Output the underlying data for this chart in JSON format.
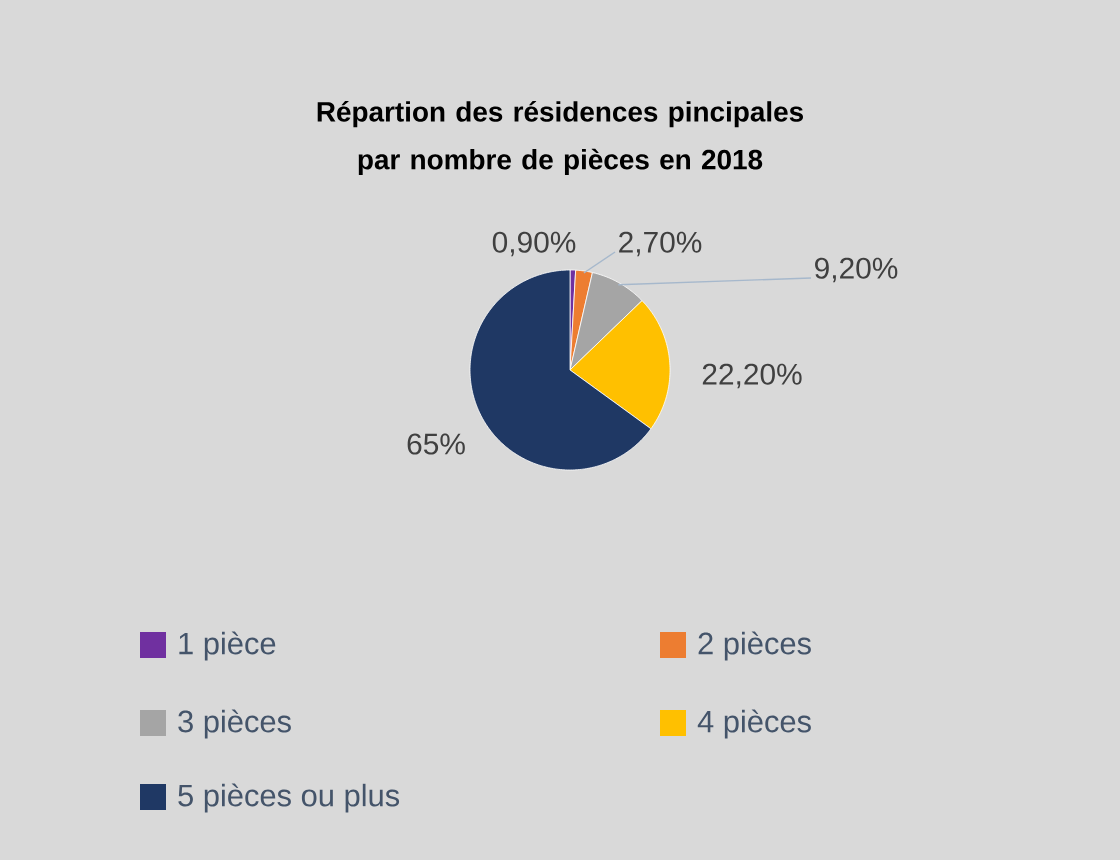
{
  "chart_data": {
    "type": "pie",
    "title": "Répartion des résidences pincipales par nombre de pièces en 2018",
    "categories": [
      "1 pièce",
      "2 pièces",
      "3 pièces",
      "4 pièces",
      "5 pièces ou plus"
    ],
    "values": [
      0.9,
      2.7,
      9.2,
      22.2,
      65
    ],
    "value_labels": [
      "0,90%",
      "2,70%",
      "9,20%",
      "22,20%",
      "65%"
    ],
    "colors": [
      "#7030a0",
      "#ed7d31",
      "#a5a5a5",
      "#ffc000",
      "#1f3864"
    ],
    "legend": "bottom"
  }
}
